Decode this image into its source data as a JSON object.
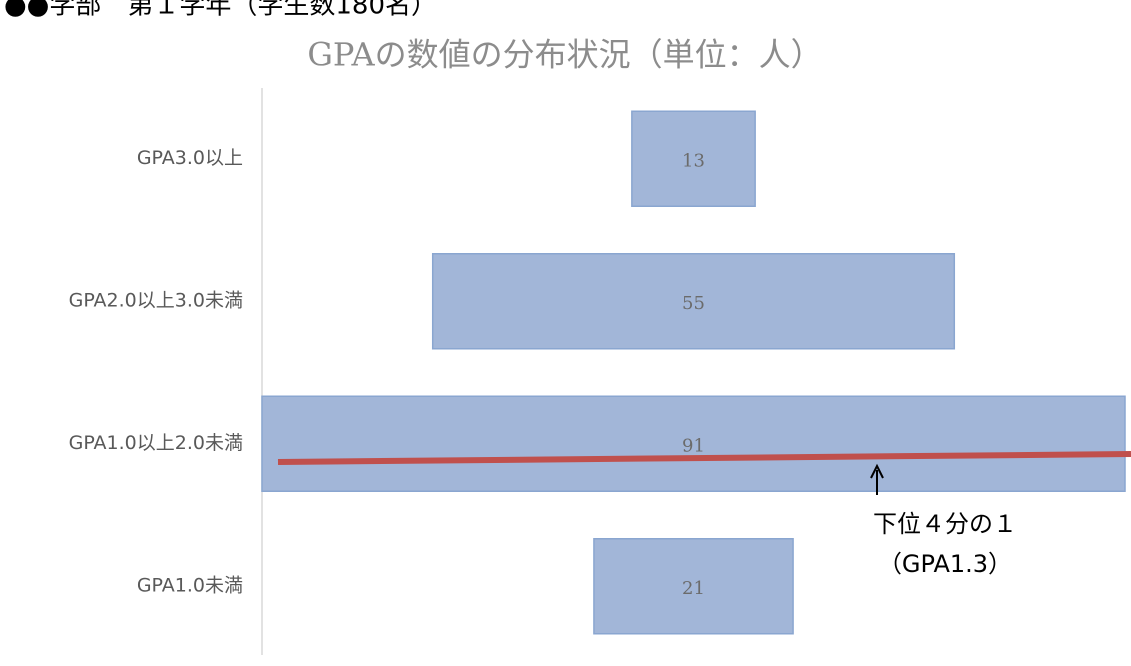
{
  "chart_data": {
    "type": "funnel",
    "heading": "●●学部　第１学年（学生数180名）",
    "title": "GPAの数値の分布状況（単位：人）",
    "categories": [
      "GPA3.0以上",
      "GPA2.0以上3.0未満",
      "GPA1.0以上2.0未満",
      "GPA1.0未満"
    ],
    "values": [
      13,
      55,
      91,
      21
    ],
    "color": "#a2b6d8",
    "annotations": [
      "下位４分の１",
      "（GPA1.3）"
    ]
  }
}
